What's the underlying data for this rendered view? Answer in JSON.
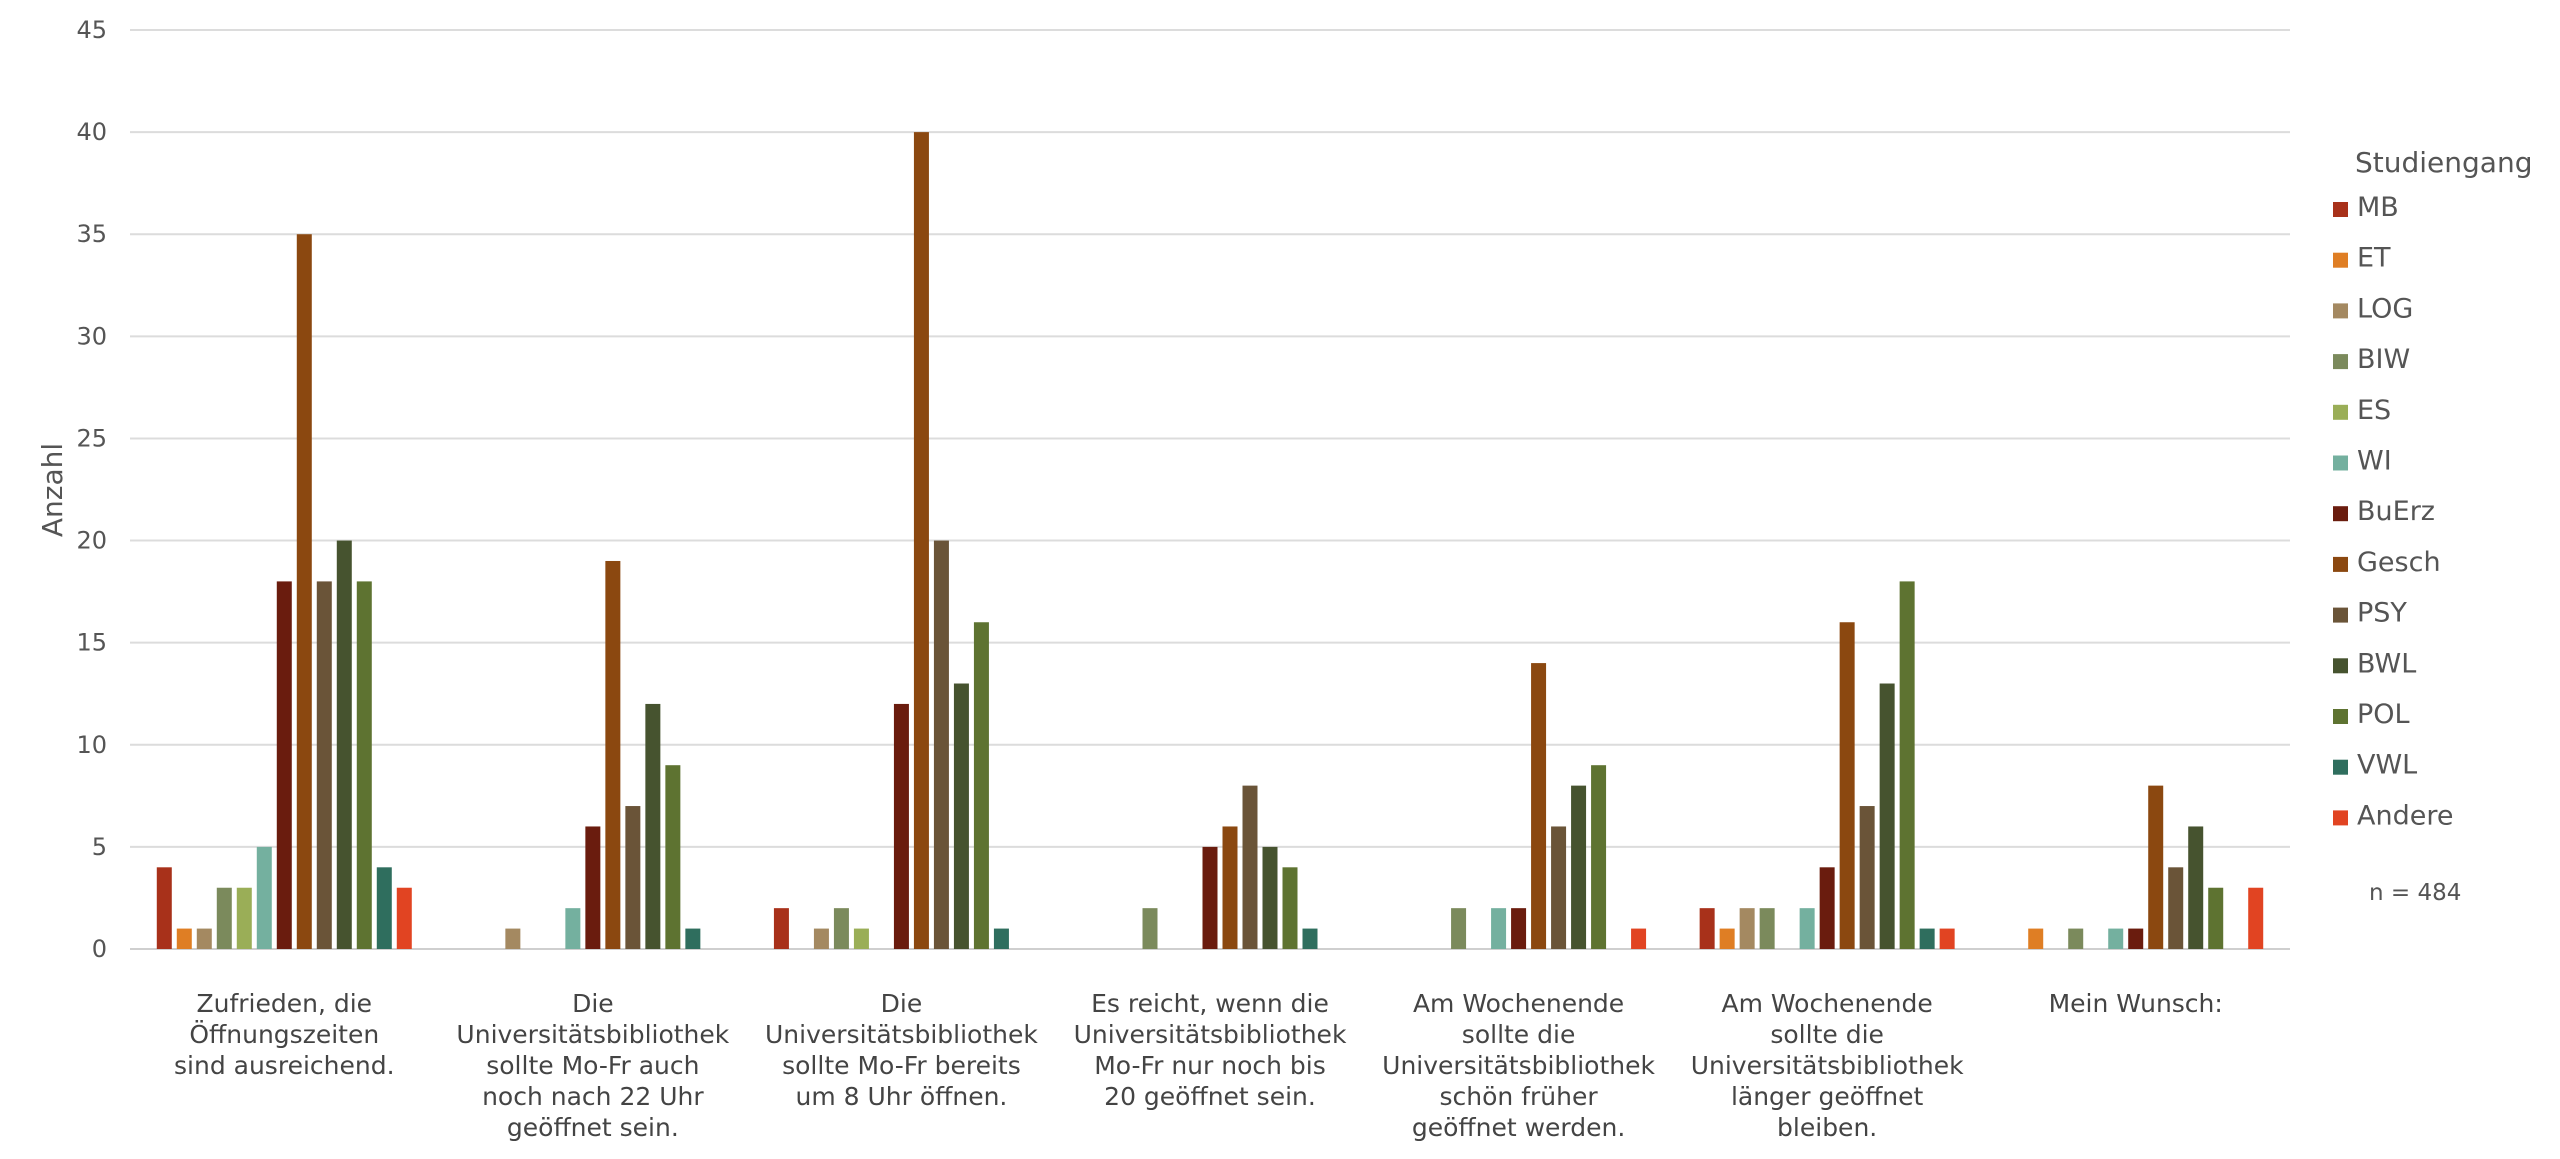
{
  "chart_data": {
    "type": "bar",
    "ylabel": "Anzahl",
    "ylim": [
      0,
      45
    ],
    "yticks": [
      0,
      5,
      10,
      15,
      20,
      25,
      30,
      35,
      40,
      45
    ],
    "grid": true,
    "legend_position": "right",
    "legend_title": "Studiengang",
    "note": "n = 484",
    "categories": [
      [
        "Zufrieden, die",
        "Öffnungszeiten",
        "sind ausreichend."
      ],
      [
        "Die",
        "Universitätsbibliothek",
        "sollte Mo-Fr auch",
        "noch nach 22 Uhr",
        "geöffnet sein."
      ],
      [
        "Die",
        "Universitätsbibliothek",
        "sollte Mo-Fr bereits",
        "um 8 Uhr öffnen."
      ],
      [
        "Es reicht, wenn die",
        "Universitätsbibliothek",
        "Mo-Fr nur noch bis",
        "20 geöffnet sein."
      ],
      [
        "Am Wochenende",
        "sollte die",
        "Universitätsbibliothek",
        "schön früher",
        "geöffnet werden."
      ],
      [
        "Am Wochenende",
        "sollte die",
        "Universitätsbibliothek",
        "länger geöffnet",
        "bleiben."
      ],
      [
        "Mein Wunsch:"
      ]
    ],
    "series": [
      {
        "name": "MB",
        "color": "#A8311A",
        "values": [
          4,
          0,
          2,
          0,
          0,
          2,
          0
        ]
      },
      {
        "name": "ET",
        "color": "#DF7E24",
        "values": [
          1,
          0,
          0,
          0,
          0,
          1,
          1
        ]
      },
      {
        "name": "LOG",
        "color": "#A48961",
        "values": [
          1,
          1,
          1,
          0,
          0,
          2,
          0
        ]
      },
      {
        "name": "BIW",
        "color": "#7B8A5C",
        "values": [
          3,
          0,
          2,
          2,
          2,
          2,
          1
        ]
      },
      {
        "name": "ES",
        "color": "#9AAE57",
        "values": [
          3,
          0,
          1,
          0,
          0,
          0,
          0
        ]
      },
      {
        "name": "WI",
        "color": "#74B09F",
        "values": [
          5,
          2,
          0,
          0,
          2,
          2,
          1
        ]
      },
      {
        "name": "BuErz",
        "color": "#6A1C0E",
        "values": [
          18,
          6,
          12,
          5,
          2,
          4,
          1
        ]
      },
      {
        "name": "Gesch",
        "color": "#8B4810",
        "values": [
          35,
          19,
          40,
          6,
          14,
          16,
          8
        ]
      },
      {
        "name": "PSY",
        "color": "#6A5438",
        "values": [
          18,
          7,
          20,
          8,
          6,
          7,
          4
        ]
      },
      {
        "name": "BWL",
        "color": "#46532F",
        "values": [
          20,
          12,
          13,
          5,
          8,
          13,
          6
        ]
      },
      {
        "name": "POL",
        "color": "#5E7331",
        "values": [
          18,
          9,
          16,
          4,
          9,
          18,
          3
        ]
      },
      {
        "name": "VWL",
        "color": "#2F6E5E",
        "values": [
          4,
          1,
          1,
          1,
          0,
          1,
          0
        ]
      },
      {
        "name": "Andere",
        "color": "#E14422",
        "values": [
          3,
          0,
          0,
          0,
          1,
          1,
          3
        ]
      }
    ]
  }
}
